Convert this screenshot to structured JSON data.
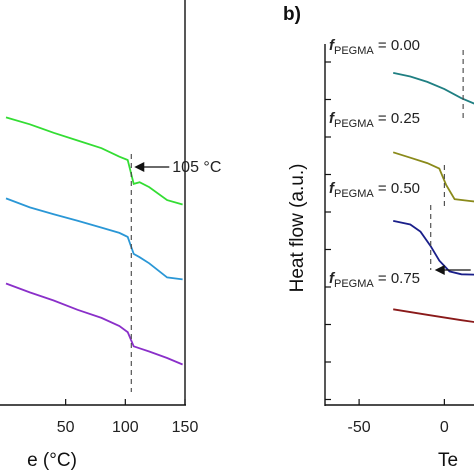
{
  "chart_data": [
    {
      "type": "line",
      "xlabel": "Temperature (°C)",
      "xlabel_visible": "e (°C)",
      "ylabel": "",
      "xlim": [
        -5,
        150
      ],
      "x_ticks": [
        50,
        100,
        150
      ],
      "grid": false,
      "series": [
        {
          "color": "#33dd33",
          "x": [
            0,
            20,
            40,
            60,
            80,
            95,
            102,
            107,
            112,
            120,
            135,
            148
          ],
          "y": [
            71.0,
            69.3,
            67.2,
            65.3,
            63.4,
            61.3,
            60.5,
            54.6,
            55.0,
            53.8,
            50.6,
            49.5
          ]
        },
        {
          "color": "#2a97d6",
          "x": [
            0,
            20,
            40,
            60,
            80,
            95,
            102,
            107,
            112,
            120,
            135,
            148
          ],
          "y": [
            51.0,
            48.8,
            47.1,
            45.5,
            43.8,
            42.5,
            41.5,
            37.3,
            36.5,
            35.0,
            31.5,
            31.0
          ]
        },
        {
          "color": "#8a2fc9",
          "x": [
            0,
            20,
            40,
            60,
            80,
            95,
            102,
            107,
            112,
            120,
            135,
            148
          ],
          "y": [
            30.0,
            27.8,
            25.8,
            23.5,
            21.5,
            19.5,
            18.0,
            14.5,
            14.0,
            13.2,
            11.6,
            10.0
          ]
        }
      ],
      "annotations": [
        {
          "text": "105 °C",
          "x": 105,
          "style": "dashed vertical line with arrow"
        }
      ]
    },
    {
      "type": "line",
      "panel_label": "b)",
      "ylabel": "Heat flow (a.u.)",
      "xlabel": "Temperature (°C)",
      "xlabel_visible": "Te",
      "xlim": [
        -70,
        25
      ],
      "x_ticks": [
        -50,
        0
      ],
      "grid": false,
      "series": [
        {
          "f_text": "f",
          "sub_text": "PEGMA",
          "value_text": " = 0.00",
          "color": "#1f7f82",
          "x": [
            -30,
            -20,
            -10,
            0,
            10,
            20,
            25
          ],
          "y": [
            92,
            91,
            89.5,
            87.5,
            85,
            83,
            80
          ]
        },
        {
          "f_text": "f",
          "sub_text": "PEGMA",
          "value_text": " = 0.25",
          "color": "#8a8a1a",
          "x": [
            -30,
            -20,
            -10,
            -3,
            1,
            6,
            15,
            25
          ],
          "y": [
            70,
            68.5,
            67,
            65.5,
            61,
            57,
            56.5,
            56
          ]
        },
        {
          "f_text": "f",
          "sub_text": "PEGMA",
          "value_text": " = 0.50",
          "color": "#1a1f8a",
          "x": [
            -30,
            -20,
            -14,
            -8,
            -3,
            3,
            10,
            25
          ],
          "y": [
            51,
            50,
            48,
            44,
            40,
            37,
            36.2,
            36
          ]
        },
        {
          "f_text": "f",
          "sub_text": "PEGMA",
          "value_text": " = 0.75",
          "color": "#8a1a1a",
          "x": [
            -30,
            -10,
            10,
            25
          ],
          "y": [
            26.5,
            25,
            23.5,
            22.5
          ]
        }
      ],
      "annotations": [
        {
          "x": 11,
          "style": "dashed vertical line"
        },
        {
          "x": 0,
          "style": "dashed vertical line"
        },
        {
          "x": -8,
          "style": "dashed vertical line with arrow"
        }
      ]
    }
  ]
}
